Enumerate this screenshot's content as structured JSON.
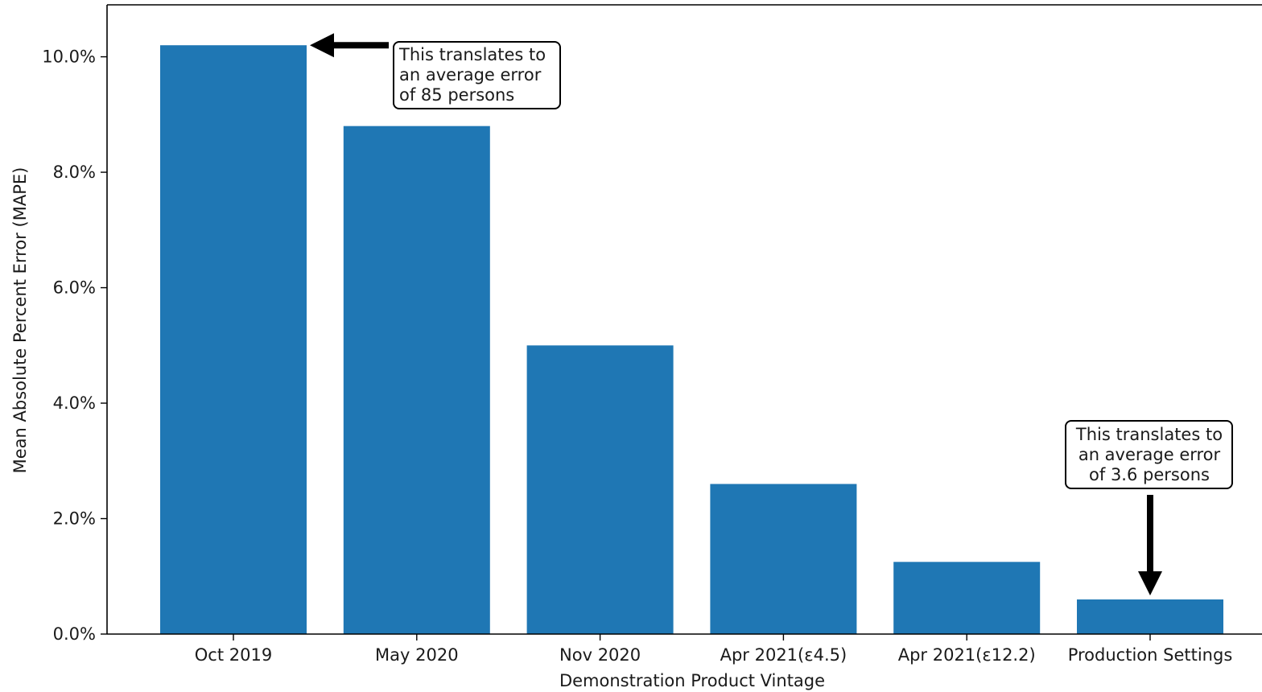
{
  "chart_data": {
    "type": "bar",
    "title": "",
    "xlabel": "Demonstration Product Vintage",
    "ylabel": "Mean Absolute Percent Error (MAPE)",
    "categories": [
      "Oct 2019",
      "May 2020",
      "Nov 2020",
      "Apr 2021(ε4.5)",
      "Apr 2021(ε12.2)",
      "Production Settings"
    ],
    "values": [
      10.2,
      8.8,
      5.0,
      2.6,
      1.25,
      0.6
    ],
    "ylim": [
      0,
      10.9
    ],
    "yticks": [
      0,
      2,
      4,
      6,
      8,
      10
    ],
    "ytick_labels": [
      "0.0%",
      "2.0%",
      "4.0%",
      "6.0%",
      "8.0%",
      "10.0%"
    ],
    "bar_color": "#1f77b4",
    "grid": false,
    "annotations": [
      {
        "bar_index": 0,
        "lines": [
          "This translates to",
          "an average error",
          "of 85 persons"
        ]
      },
      {
        "bar_index": 5,
        "lines": [
          "This translates to",
          "an average error",
          "of 3.6 persons"
        ]
      }
    ]
  }
}
